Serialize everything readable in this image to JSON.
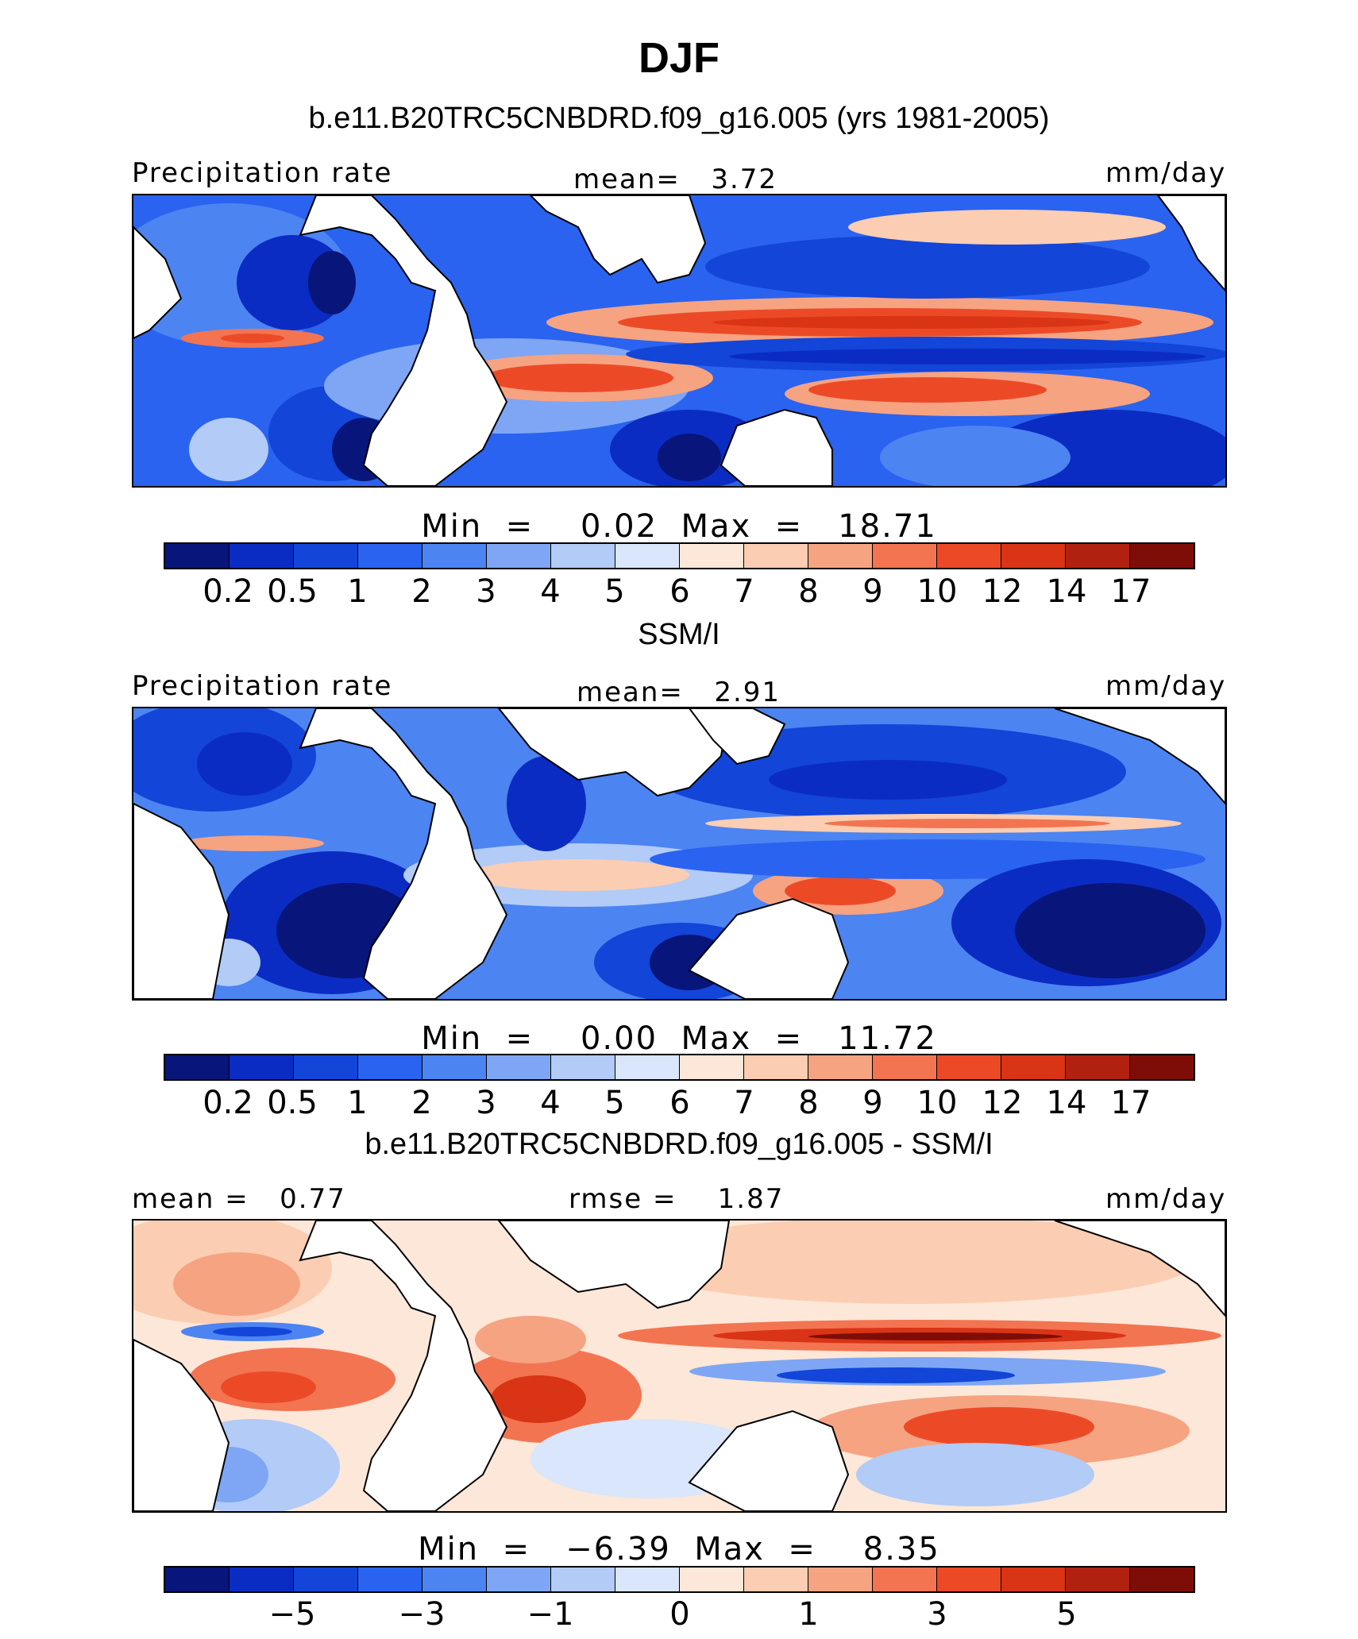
{
  "title": "DJF",
  "colors": [
    "#08157a",
    "#0b2cc2",
    "#1245d8",
    "#2a63ef",
    "#4c84f2",
    "#7ea6f4",
    "#b2cbf7",
    "#d9e6fb",
    "#fde7d8",
    "#fbcdb2",
    "#f6a382",
    "#f37451",
    "#ec4a27",
    "#d83415",
    "#b0220f",
    "#7f0d07"
  ],
  "panels": [
    {
      "title": "b.e11.B20TRC5CNBDRD.f09_g16.005 (yrs 1981-2005)",
      "left_label": "Precipitation rate",
      "center_label": "mean=   3.72",
      "right_label": "mm/day",
      "minmax": "Min  =    0.02  Max  =   18.71",
      "ticks": [
        "0.2",
        "0.5",
        "1",
        "2",
        "3",
        "4",
        "5",
        "6",
        "7",
        "8",
        "9",
        "10",
        "12",
        "14",
        "17"
      ]
    },
    {
      "title": "SSM/I",
      "left_label": "Precipitation rate",
      "center_label": "mean=   2.91",
      "right_label": "mm/day",
      "minmax": "Min  =    0.00  Max  =   11.72",
      "ticks": [
        "0.2",
        "0.5",
        "1",
        "2",
        "3",
        "4",
        "5",
        "6",
        "7",
        "8",
        "9",
        "10",
        "12",
        "14",
        "17"
      ]
    },
    {
      "title": "b.e11.B20TRC5CNBDRD.f09_g16.005 - SSM/I",
      "left_label": "mean =   0.77",
      "center_label": "rmse =    1.87",
      "right_label": "mm/day",
      "minmax": "Min  =   −6.39  Max  =    8.35",
      "ticks": [
        "",
        "−5",
        "",
        "−3",
        "",
        "−1",
        "",
        "0",
        "",
        "1",
        "",
        "3",
        "",
        "5",
        ""
      ]
    }
  ]
}
